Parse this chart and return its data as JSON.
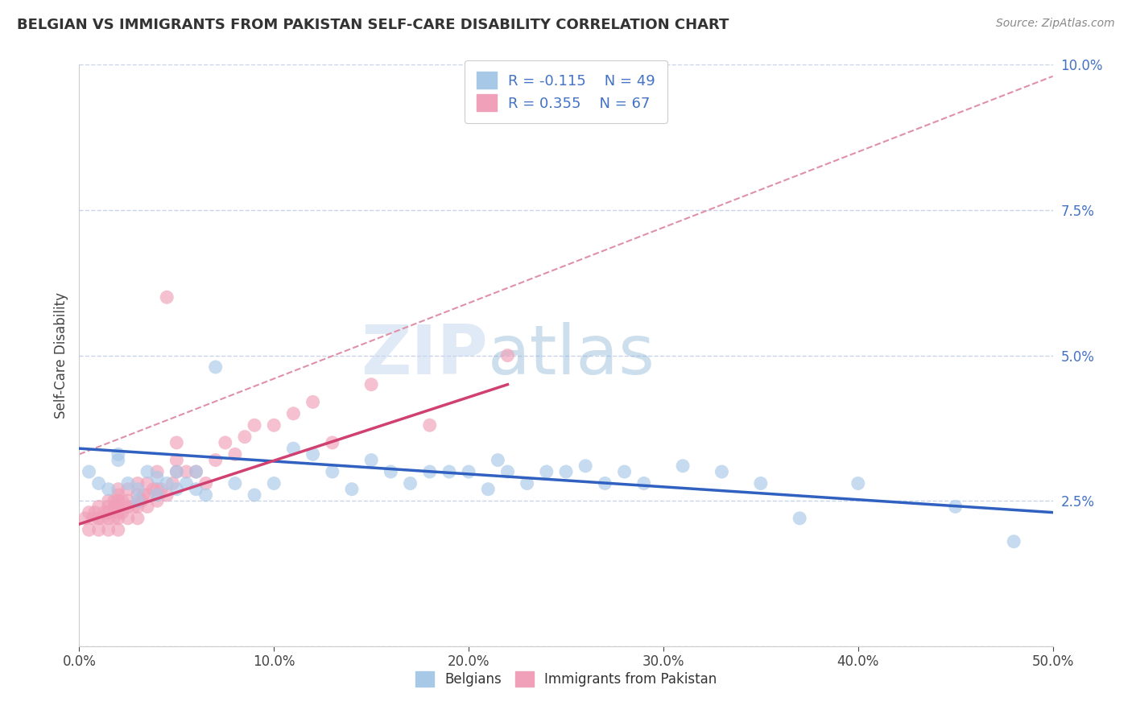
{
  "title": "BELGIAN VS IMMIGRANTS FROM PAKISTAN SELF-CARE DISABILITY CORRELATION CHART",
  "source": "Source: ZipAtlas.com",
  "ylabel": "Self-Care Disability",
  "xlim": [
    0.0,
    0.5
  ],
  "ylim": [
    0.0,
    0.1
  ],
  "xticks": [
    0.0,
    0.1,
    0.2,
    0.3,
    0.4,
    0.5
  ],
  "yticks": [
    0.0,
    0.025,
    0.05,
    0.075,
    0.1
  ],
  "xticklabels": [
    "0.0%",
    "10.0%",
    "20.0%",
    "30.0%",
    "40.0%",
    "50.0%"
  ],
  "yticklabels": [
    "",
    "2.5%",
    "5.0%",
    "7.5%",
    "10.0%"
  ],
  "belgians_R": -0.115,
  "belgians_N": 49,
  "pakistan_R": 0.355,
  "pakistan_N": 67,
  "legend_label1": "Belgians",
  "legend_label2": "Immigrants from Pakistan",
  "color_belgian": "#a8c8e8",
  "color_pakistan": "#f0a0b8",
  "line_color_belgian": "#3060c0",
  "line_color_pakistan": "#d04070",
  "dashed_line_color": "#e090a8",
  "watermark_zip": "ZIP",
  "watermark_atlas": "atlas",
  "background_color": "#ffffff",
  "belgians_x": [
    0.005,
    0.01,
    0.015,
    0.02,
    0.02,
    0.025,
    0.03,
    0.03,
    0.035,
    0.04,
    0.04,
    0.045,
    0.05,
    0.05,
    0.055,
    0.06,
    0.06,
    0.065,
    0.07,
    0.08,
    0.09,
    0.1,
    0.11,
    0.12,
    0.13,
    0.14,
    0.15,
    0.16,
    0.17,
    0.18,
    0.19,
    0.2,
    0.21,
    0.215,
    0.22,
    0.23,
    0.24,
    0.25,
    0.26,
    0.27,
    0.28,
    0.29,
    0.31,
    0.33,
    0.35,
    0.37,
    0.4,
    0.45,
    0.48
  ],
  "belgians_y": [
    0.03,
    0.028,
    0.027,
    0.032,
    0.033,
    0.028,
    0.025,
    0.027,
    0.03,
    0.026,
    0.029,
    0.028,
    0.027,
    0.03,
    0.028,
    0.027,
    0.03,
    0.026,
    0.048,
    0.028,
    0.026,
    0.028,
    0.034,
    0.033,
    0.03,
    0.027,
    0.032,
    0.03,
    0.028,
    0.03,
    0.03,
    0.03,
    0.027,
    0.032,
    0.03,
    0.028,
    0.03,
    0.03,
    0.031,
    0.028,
    0.03,
    0.028,
    0.031,
    0.03,
    0.028,
    0.022,
    0.028,
    0.024,
    0.018
  ],
  "pakistan_x": [
    0.003,
    0.005,
    0.005,
    0.007,
    0.008,
    0.01,
    0.01,
    0.01,
    0.012,
    0.013,
    0.015,
    0.015,
    0.015,
    0.015,
    0.015,
    0.018,
    0.018,
    0.018,
    0.02,
    0.02,
    0.02,
    0.02,
    0.02,
    0.02,
    0.02,
    0.022,
    0.022,
    0.025,
    0.025,
    0.025,
    0.025,
    0.028,
    0.03,
    0.03,
    0.03,
    0.03,
    0.032,
    0.033,
    0.035,
    0.035,
    0.035,
    0.038,
    0.04,
    0.04,
    0.04,
    0.042,
    0.045,
    0.045,
    0.048,
    0.05,
    0.05,
    0.05,
    0.055,
    0.06,
    0.065,
    0.07,
    0.075,
    0.08,
    0.085,
    0.09,
    0.1,
    0.11,
    0.12,
    0.13,
    0.15,
    0.18,
    0.22
  ],
  "pakistan_y": [
    0.022,
    0.02,
    0.023,
    0.022,
    0.023,
    0.02,
    0.022,
    0.024,
    0.022,
    0.023,
    0.02,
    0.022,
    0.023,
    0.024,
    0.025,
    0.022,
    0.024,
    0.025,
    0.02,
    0.022,
    0.023,
    0.024,
    0.025,
    0.026,
    0.027,
    0.023,
    0.025,
    0.022,
    0.024,
    0.025,
    0.027,
    0.024,
    0.022,
    0.024,
    0.026,
    0.028,
    0.025,
    0.026,
    0.024,
    0.026,
    0.028,
    0.027,
    0.025,
    0.027,
    0.03,
    0.027,
    0.026,
    0.06,
    0.028,
    0.03,
    0.032,
    0.035,
    0.03,
    0.03,
    0.028,
    0.032,
    0.035,
    0.033,
    0.036,
    0.038,
    0.038,
    0.04,
    0.042,
    0.035,
    0.045,
    0.038,
    0.05
  ],
  "belgian_line_x0": 0.0,
  "belgian_line_x1": 0.5,
  "belgian_line_y0": 0.034,
  "belgian_line_y1": 0.023,
  "pakistan_line_x0": 0.0,
  "pakistan_line_x1": 0.22,
  "pakistan_line_y0": 0.021,
  "pakistan_line_y1": 0.045,
  "dashed_line_x0": 0.0,
  "dashed_line_x1": 0.5,
  "dashed_line_y0": 0.033,
  "dashed_line_y1": 0.098
}
